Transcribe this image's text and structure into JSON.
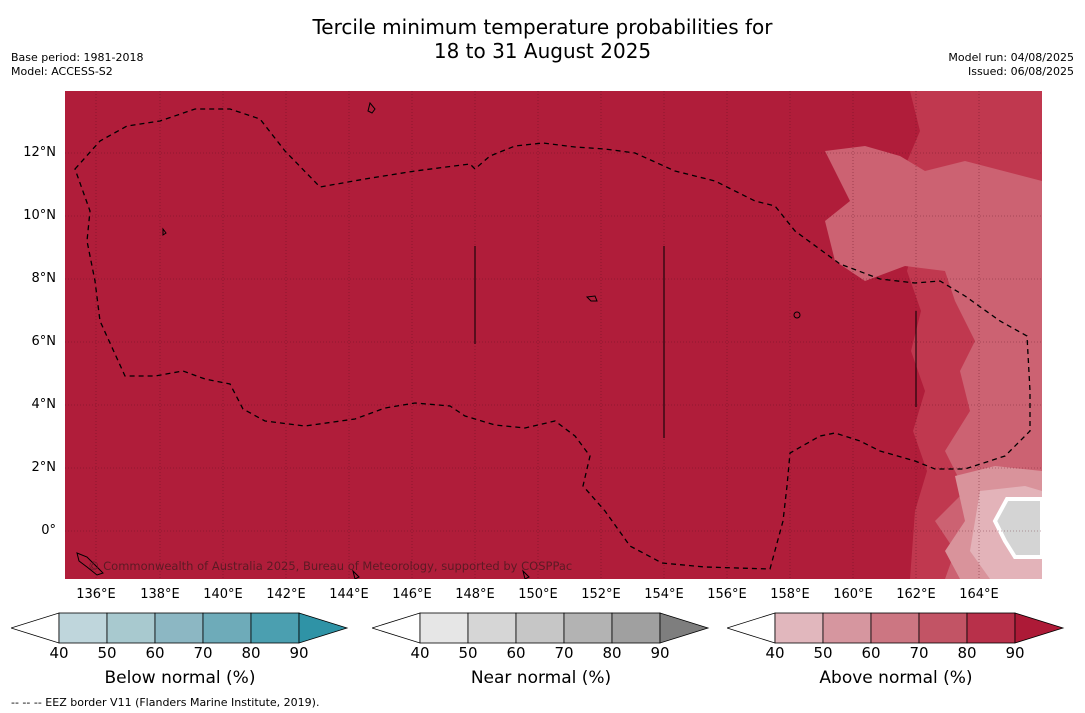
{
  "title": {
    "line1": "Tercile minimum temperature probabilities for",
    "line2": "18 to 31 August 2025"
  },
  "meta_left": {
    "base_period": "Base period: 1981-2018",
    "model": "Model: ACCESS-S2"
  },
  "meta_right": {
    "model_run": "Model run: 04/08/2025",
    "issued": "Issued: 06/08/2025"
  },
  "map": {
    "copyright": "© Commonwealth of Australia 2025, Bureau of Meteorology, supported by COSPPac",
    "lat_labels": [
      "12°N",
      "10°N",
      "8°N",
      "6°N",
      "4°N",
      "2°N",
      "0°"
    ],
    "lon_labels": [
      "136°E",
      "138°E",
      "140°E",
      "142°E",
      "144°E",
      "146°E",
      "148°E",
      "150°E",
      "152°E",
      "154°E",
      "156°E",
      "158°E",
      "160°E",
      "162°E",
      "164°E"
    ],
    "colors": {
      "above_dominant": "#b01d3a",
      "near_normal_patch": "#d4d4d4"
    }
  },
  "colorbars": [
    {
      "name": "below",
      "title": "Below normal (%)",
      "ticks": [
        "40",
        "50",
        "60",
        "70",
        "80",
        "90"
      ],
      "colors": [
        "#ffffff",
        "#bfd6dc",
        "#a8c9cf",
        "#8cb7c3",
        "#6eabb9",
        "#4b9fb0",
        "#2f93a6"
      ]
    },
    {
      "name": "near",
      "title": "Near normal (%)",
      "ticks": [
        "40",
        "50",
        "60",
        "70",
        "80",
        "90"
      ],
      "colors": [
        "#ffffff",
        "#e6e6e6",
        "#d6d6d6",
        "#c6c6c6",
        "#b3b3b3",
        "#a0a0a0",
        "#7e7e7e"
      ]
    },
    {
      "name": "above",
      "title": "Above normal (%)",
      "ticks": [
        "40",
        "50",
        "60",
        "70",
        "80",
        "90"
      ],
      "colors": [
        "#ffffff",
        "#e1b7bd",
        "#d6969f",
        "#cc7682",
        "#c25465",
        "#b8304a",
        "#ad1a37"
      ]
    }
  ],
  "footnote": "-- -- -- EEZ border V11 (Flanders Marine Institute, 2019)."
}
